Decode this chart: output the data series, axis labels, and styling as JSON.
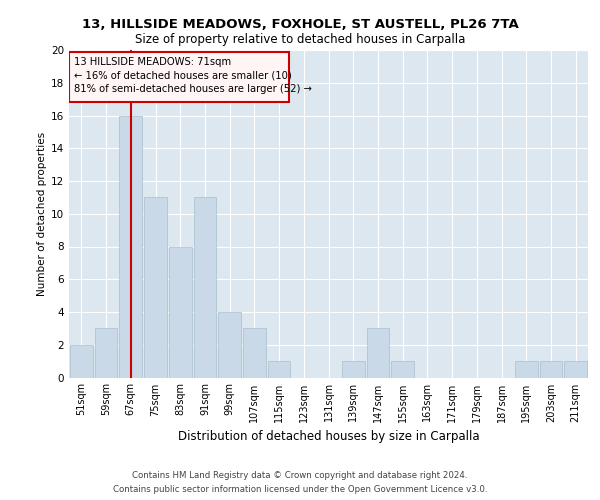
{
  "title1": "13, HILLSIDE MEADOWS, FOXHOLE, ST AUSTELL, PL26 7TA",
  "title2": "Size of property relative to detached houses in Carpalla",
  "xlabel": "Distribution of detached houses by size in Carpalla",
  "ylabel": "Number of detached properties",
  "categories": [
    "51sqm",
    "59sqm",
    "67sqm",
    "75sqm",
    "83sqm",
    "91sqm",
    "99sqm",
    "107sqm",
    "115sqm",
    "123sqm",
    "131sqm",
    "139sqm",
    "147sqm",
    "155sqm",
    "163sqm",
    "171sqm",
    "179sqm",
    "187sqm",
    "195sqm",
    "203sqm",
    "211sqm"
  ],
  "values": [
    2,
    3,
    16,
    11,
    8,
    11,
    4,
    3,
    1,
    0,
    0,
    1,
    3,
    1,
    0,
    0,
    0,
    0,
    1,
    1,
    1
  ],
  "bar_color": "#c9d9e8",
  "bar_edgecolor": "#a8bfcc",
  "annotation_line1": "13 HILLSIDE MEADOWS: 71sqm",
  "annotation_line2": "← 16% of detached houses are smaller (10)",
  "annotation_line3": "81% of semi-detached houses are larger (52) →",
  "annotation_border_color": "#cc0000",
  "annotation_face_color": "#fff5f5",
  "red_line_color": "#cc0000",
  "ylim": [
    0,
    20
  ],
  "yticks": [
    0,
    2,
    4,
    6,
    8,
    10,
    12,
    14,
    16,
    18,
    20
  ],
  "background_color": "#dde7f0",
  "grid_color": "#ffffff",
  "footer1": "Contains HM Land Registry data © Crown copyright and database right 2024.",
  "footer2": "Contains public sector information licensed under the Open Government Licence v3.0."
}
